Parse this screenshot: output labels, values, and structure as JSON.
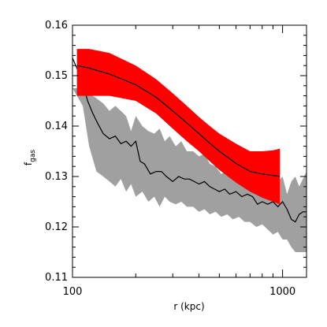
{
  "chart_data": {
    "type": "area",
    "xlabel": "r (kpc)",
    "ylabel_main": "f",
    "ylabel_sub": "gas",
    "xscale": "log",
    "xlim": [
      100,
      1300
    ],
    "ylim": [
      0.11,
      0.16
    ],
    "xticks": [
      {
        "value": 100,
        "label": "100"
      },
      {
        "value": 1000,
        "label": "1000"
      }
    ],
    "yticks": [
      {
        "value": 0.11,
        "label": "0.11"
      },
      {
        "value": 0.12,
        "label": "0.12"
      },
      {
        "value": 0.13,
        "label": "0.13"
      },
      {
        "value": 0.14,
        "label": "0.14"
      },
      {
        "value": 0.15,
        "label": "0.15"
      },
      {
        "value": 0.16,
        "label": "0.16"
      }
    ],
    "grid": false,
    "series": [
      {
        "kind": "band",
        "color": "#a0a0a0",
        "x": [
          100,
          112,
          120,
          130,
          140,
          150,
          160,
          170,
          180,
          190,
          200,
          215,
          230,
          245,
          260,
          275,
          290,
          310,
          330,
          350,
          375,
          400,
          425,
          450,
          480,
          510,
          545,
          580,
          620,
          660,
          700,
          750,
          800,
          850,
          900,
          950,
          1000,
          1050,
          1100,
          1150,
          1200,
          1300
        ],
        "upper": [
          0.1475,
          0.1475,
          0.1465,
          0.1455,
          0.1445,
          0.143,
          0.144,
          0.143,
          0.142,
          0.139,
          0.142,
          0.14,
          0.139,
          0.1385,
          0.1395,
          0.137,
          0.138,
          0.136,
          0.137,
          0.135,
          0.135,
          0.134,
          0.1345,
          0.1325,
          0.132,
          0.1305,
          0.131,
          0.131,
          0.13,
          0.1315,
          0.129,
          0.13,
          0.1285,
          0.13,
          0.128,
          0.129,
          0.13,
          0.1265,
          0.129,
          0.13,
          0.128,
          0.131
        ],
        "lower": [
          0.1475,
          0.144,
          0.136,
          0.131,
          0.13,
          0.129,
          0.128,
          0.1295,
          0.127,
          0.1285,
          0.126,
          0.127,
          0.125,
          0.126,
          0.124,
          0.126,
          0.125,
          0.1245,
          0.125,
          0.124,
          0.124,
          0.123,
          0.1235,
          0.1225,
          0.123,
          0.122,
          0.1225,
          0.1215,
          0.122,
          0.121,
          0.121,
          0.12,
          0.1205,
          0.1195,
          0.1185,
          0.119,
          0.1175,
          0.1175,
          0.116,
          0.115,
          0.115,
          0.115
        ]
      },
      {
        "kind": "line",
        "color": "#000000",
        "x": [
          100,
          110,
          118,
          125,
          132,
          140,
          150,
          160,
          170,
          180,
          190,
          200,
          210,
          220,
          235,
          250,
          265,
          280,
          300,
          320,
          340,
          360,
          380,
          400,
          425,
          450,
          475,
          500,
          530,
          560,
          600,
          640,
          680,
          720,
          760,
          800,
          850,
          900,
          950,
          1000,
          1050,
          1100,
          1150,
          1200,
          1250,
          1300
        ],
        "values": [
          0.1535,
          0.1495,
          0.145,
          0.1425,
          0.1405,
          0.1385,
          0.1375,
          0.138,
          0.1365,
          0.137,
          0.136,
          0.137,
          0.133,
          0.1325,
          0.1305,
          0.131,
          0.131,
          0.13,
          0.129,
          0.13,
          0.1295,
          0.1295,
          0.129,
          0.1285,
          0.129,
          0.128,
          0.1275,
          0.127,
          0.1275,
          0.1265,
          0.127,
          0.126,
          0.1265,
          0.126,
          0.1245,
          0.125,
          0.1245,
          0.125,
          0.124,
          0.125,
          0.1235,
          0.1215,
          0.121,
          0.1225,
          0.123,
          0.123
        ]
      },
      {
        "kind": "band",
        "color": "#ff0000",
        "x": [
          105,
          120,
          150,
          200,
          250,
          300,
          350,
          400,
          450,
          500,
          600,
          700,
          800,
          900,
          970
        ],
        "upper": [
          0.1553,
          0.1553,
          0.1545,
          0.152,
          0.1493,
          0.1465,
          0.144,
          0.1418,
          0.14,
          0.1385,
          0.1365,
          0.135,
          0.135,
          0.1352,
          0.1355
        ],
        "lower": [
          0.146,
          0.146,
          0.146,
          0.145,
          0.1425,
          0.1395,
          0.137,
          0.135,
          0.133,
          0.1313,
          0.1288,
          0.127,
          0.1258,
          0.125,
          0.1245
        ]
      },
      {
        "kind": "line",
        "color": "#000000",
        "x": [
          105,
          120,
          150,
          200,
          250,
          300,
          350,
          400,
          450,
          500,
          600,
          700,
          800,
          900,
          970
        ],
        "values": [
          0.152,
          0.1515,
          0.1503,
          0.1482,
          0.1457,
          0.143,
          0.1406,
          0.1385,
          0.1366,
          0.135,
          0.1326,
          0.131,
          0.1305,
          0.1302,
          0.13
        ]
      }
    ]
  }
}
